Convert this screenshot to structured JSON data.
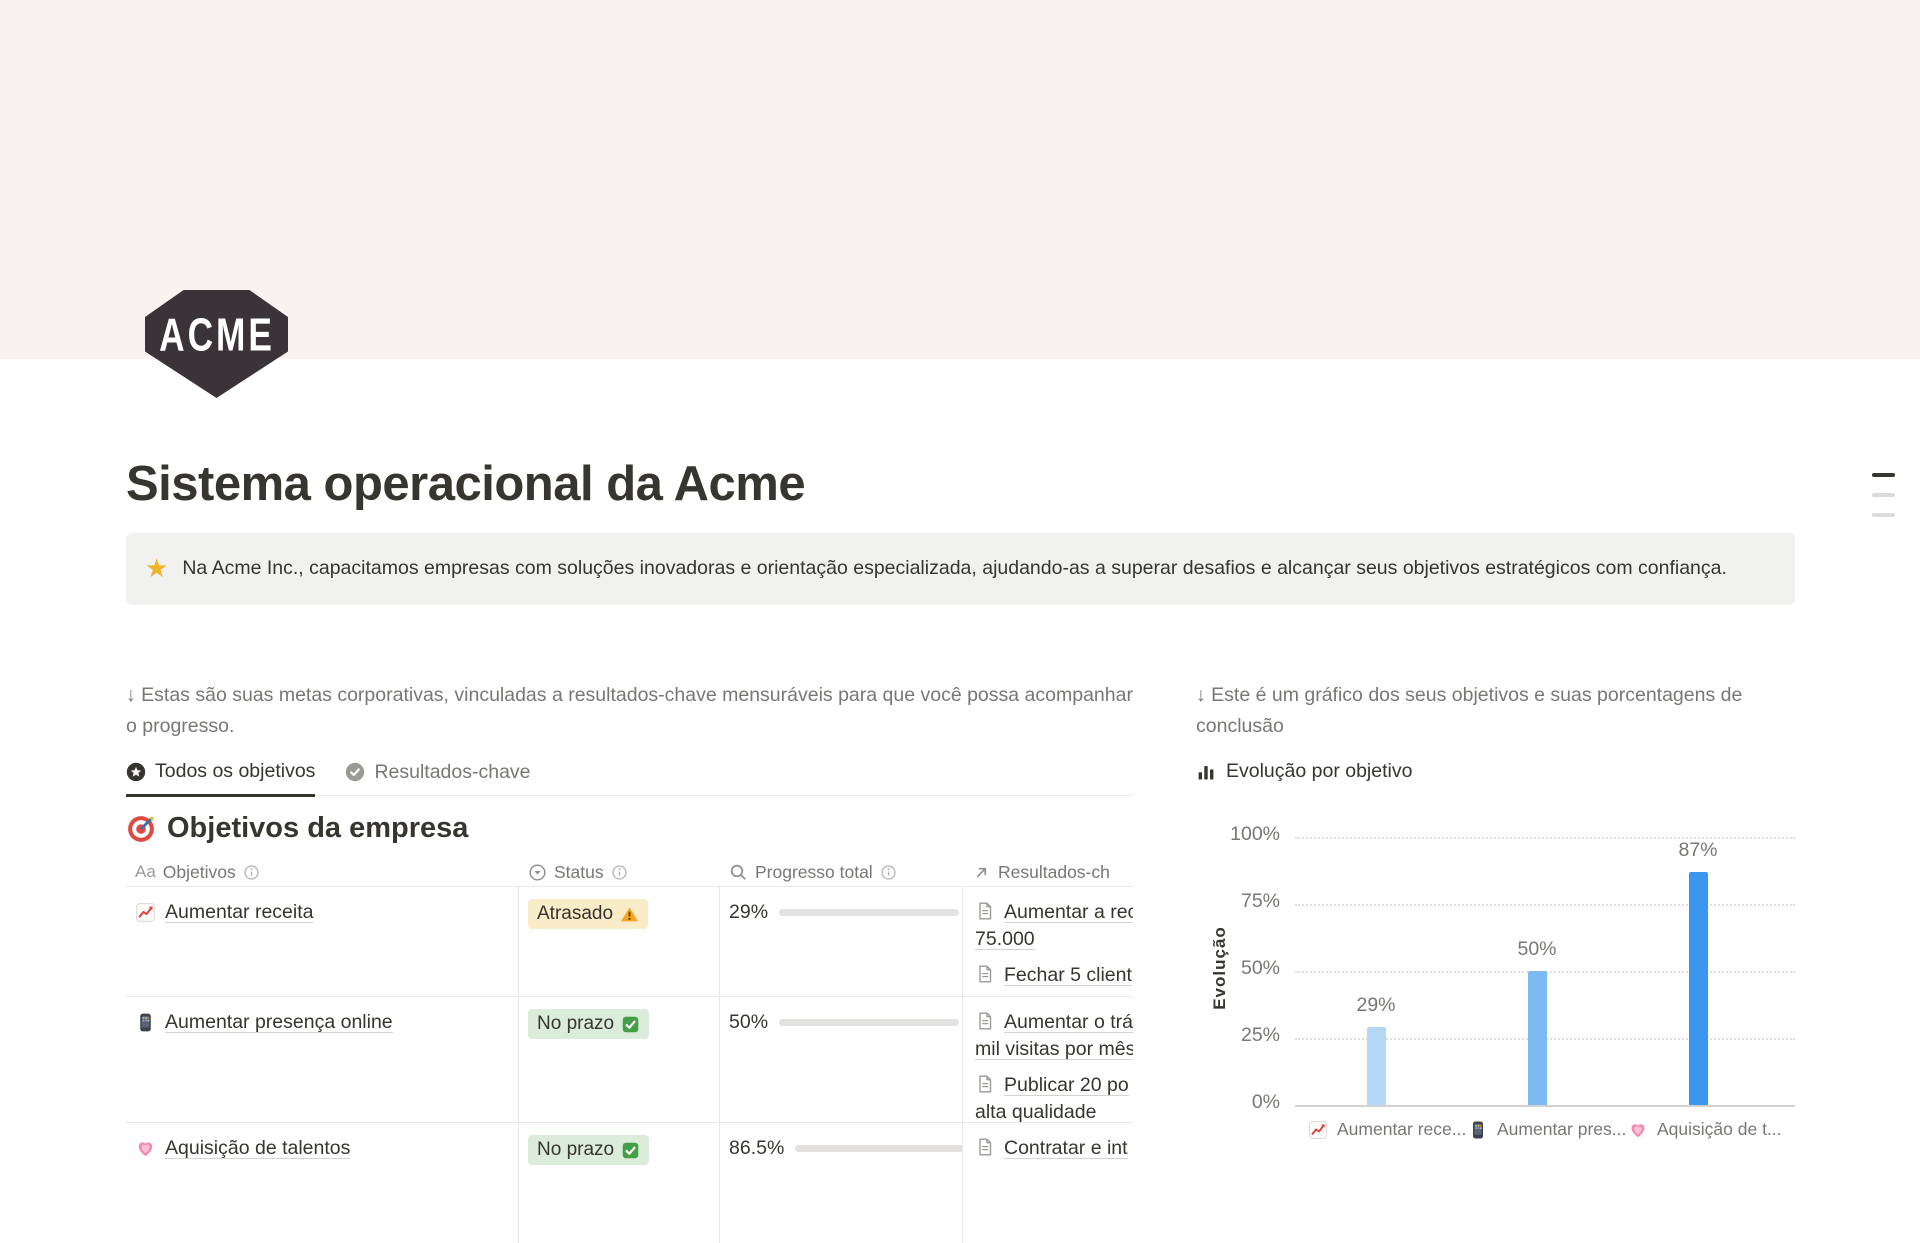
{
  "page": {
    "logo_text": "ACME",
    "title": "Sistema operacional da Acme",
    "callout": {
      "icon": "glowing-star",
      "text": "Na Acme Inc., capacitamos empresas com soluções inovadoras e orientação especializada, ajudando-as a superar desafios e alcançar seus objetivos estratégicos com confiança."
    }
  },
  "left": {
    "intro": "↓ Estas são suas metas corporativas, vinculadas a resultados-chave mensuráveis para que você possa acompanhar o progresso.",
    "tabs": [
      {
        "label": "Todos os objetivos",
        "icon": "star-circle",
        "active": true
      },
      {
        "label": "Resultados-chave",
        "icon": "check-circle",
        "active": false
      }
    ],
    "section": {
      "icon": "target",
      "title": "Objetivos da empresa"
    },
    "table": {
      "headers": [
        {
          "icon": "text-property",
          "icon_label": "Aa",
          "label": "Objetivos",
          "info": true
        },
        {
          "icon": "select-property",
          "label": "Status",
          "info": true
        },
        {
          "icon": "rollup-property",
          "label": "Progresso total",
          "info": true
        },
        {
          "icon": "relation-property",
          "label": "Resultados-ch",
          "info": false
        }
      ],
      "rows": [
        {
          "icon": "chart-increasing",
          "title": "Aumentar receita",
          "status": {
            "label": "Atrasado",
            "icon": "warning",
            "type": "warning"
          },
          "progress": {
            "label": "29%",
            "value": 29
          },
          "results": [
            {
              "lines": [
                "Aumentar a rec",
                "75.000"
              ]
            },
            {
              "lines": [
                "Fechar 5 client"
              ]
            }
          ]
        },
        {
          "icon": "mobile-phone",
          "title": "Aumentar presença online",
          "status": {
            "label": "No prazo",
            "icon": "check",
            "type": "success"
          },
          "progress": {
            "label": "50%",
            "value": 50
          },
          "results": [
            {
              "lines": [
                "Aumentar o trá",
                "mil visitas por mês"
              ]
            },
            {
              "lines": [
                "Publicar 20 po",
                "alta qualidade"
              ]
            }
          ]
        },
        {
          "icon": "growing-heart",
          "title": "Aquisição de talentos",
          "status": {
            "label": "No prazo",
            "icon": "check",
            "type": "success"
          },
          "progress": {
            "label": "86.5%",
            "value": 86.5
          },
          "results": [
            {
              "lines": [
                "Contratar e int"
              ]
            }
          ]
        }
      ]
    }
  },
  "right": {
    "intro": "↓ Este é um gráfico dos seus objetivos e suas porcentagens de conclusão",
    "chart_header": {
      "icon": "bar-chart",
      "title": "Evolução por objetivo"
    }
  },
  "chart_data": {
    "type": "bar",
    "title": "Evolução por objetivo",
    "ylabel": "Evolução",
    "ylim": [
      0,
      100
    ],
    "yticks": [
      "100%",
      "75%",
      "50%",
      "25%",
      "0%"
    ],
    "categories": [
      "Aumentar rece...",
      "Aumentar pres...",
      "Aquisição de t..."
    ],
    "category_icon_names": [
      "chart-increasing",
      "mobile-phone",
      "growing-heart"
    ],
    "values": [
      29,
      50,
      87
    ],
    "bar_labels": [
      "29%",
      "50%",
      "87%"
    ],
    "bar_colors": [
      "#b5d8f7",
      "#7ebaf2",
      "#3a96ee"
    ],
    "grid": "horizontal-dotted",
    "legend_position": "bottom"
  },
  "colors": {
    "cover": "#f8f3f1",
    "callout_bg": "#f1f1ef",
    "badge_warning_bg": "#fbecc9",
    "badge_success_bg": "#dbecdb",
    "progress_fill": "#4a8cba",
    "text_primary": "#37352f",
    "text_secondary": "#787774",
    "border": "#e9e9e7"
  }
}
